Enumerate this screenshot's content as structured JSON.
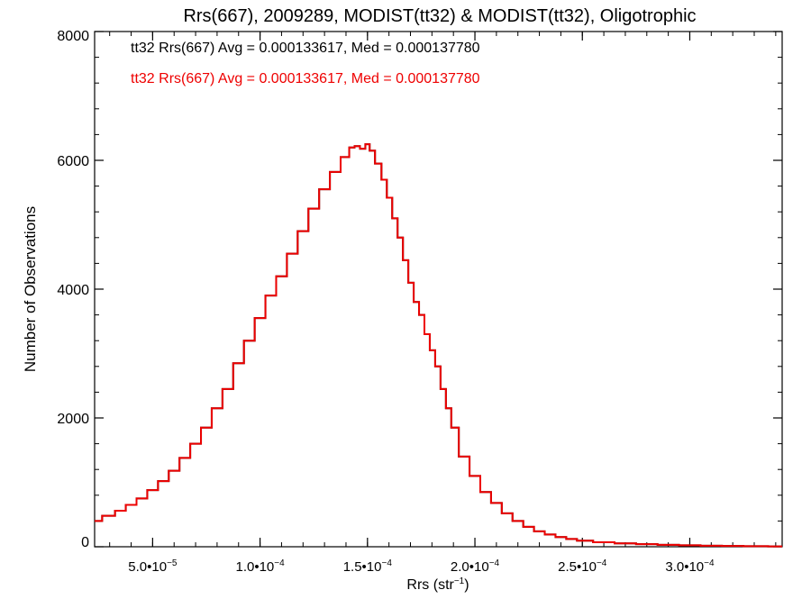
{
  "chart_data": {
    "type": "histogram",
    "title": "Rrs(667), 2009289, MODIST(tt32) & MODIST(tt32), Oligotrophic",
    "xlabel": "Rrs (str",
    "xlabel_superscript": "−1",
    "xlabel_suffix": ")",
    "ylabel": "Number of Observations",
    "xlim": [
      2.3e-05,
      0.000343
    ],
    "ylim": [
      0,
      8000
    ],
    "x_ticks": [
      {
        "value": 5e-05,
        "label": "5.0•10",
        "exp": "−5"
      },
      {
        "value": 0.0001,
        "label": "1.0•10",
        "exp": "−4"
      },
      {
        "value": 0.00015,
        "label": "1.5•10",
        "exp": "−4"
      },
      {
        "value": 0.0002,
        "label": "2.0•10",
        "exp": "−4"
      },
      {
        "value": 0.00025,
        "label": "2.5•10",
        "exp": "−4"
      },
      {
        "value": 0.0003,
        "label": "3.0•10",
        "exp": "−4"
      }
    ],
    "y_ticks": [
      {
        "value": 0,
        "label": "0"
      },
      {
        "value": 2000,
        "label": "2000"
      },
      {
        "value": 4000,
        "label": "4000"
      },
      {
        "value": 6000,
        "label": "6000"
      },
      {
        "value": 8000,
        "label": "8000"
      }
    ],
    "annotations": [
      {
        "text": "tt32 Rrs(667) Avg = 0.000133617, Med = 0.000137780",
        "color": "#000000"
      },
      {
        "text": "tt32 Rrs(667) Avg = 0.000133617, Med = 0.000137780",
        "color": "#ee0000"
      }
    ],
    "series": [
      {
        "color": "#000000",
        "step": "mid"
      },
      {
        "color": "#ee0000",
        "step": "mid"
      }
    ],
    "x": [
      2.3e-05,
      3e-05,
      3.5e-05,
      4e-05,
      4.5e-05,
      5e-05,
      5.5e-05,
      6e-05,
      6.5e-05,
      7e-05,
      7.5e-05,
      8e-05,
      8.5e-05,
      9e-05,
      9.5e-05,
      0.0001,
      0.000105,
      0.00011,
      0.000115,
      0.00012,
      0.000125,
      0.00013,
      0.000135,
      0.00014,
      0.000143,
      0.000145,
      0.000148,
      0.00015,
      0.000152,
      0.000155,
      0.000158,
      0.00016,
      0.000163,
      0.000165,
      0.000168,
      0.00017,
      0.000173,
      0.000175,
      0.000178,
      0.00018,
      0.000183,
      0.000185,
      0.000188,
      0.00019,
      0.000195,
      0.0002,
      0.000205,
      0.00021,
      0.000215,
      0.00022,
      0.000225,
      0.00023,
      0.000235,
      0.00024,
      0.000245,
      0.00025,
      0.00026,
      0.00027,
      0.00028,
      0.00029,
      0.0003,
      0.00031,
      0.00032,
      0.00033,
      0.000343
    ],
    "values": [
      400,
      480,
      560,
      650,
      750,
      880,
      1020,
      1180,
      1380,
      1600,
      1850,
      2150,
      2450,
      2850,
      3200,
      3550,
      3900,
      4200,
      4550,
      4900,
      5250,
      5550,
      5820,
      6050,
      6200,
      6220,
      6180,
      6250,
      6150,
      5950,
      5700,
      5420,
      5100,
      4800,
      4450,
      4100,
      3800,
      3600,
      3300,
      3050,
      2800,
      2450,
      2150,
      1850,
      1400,
      1100,
      850,
      680,
      520,
      400,
      310,
      240,
      190,
      150,
      120,
      95,
      70,
      52,
      40,
      30,
      22,
      16,
      12,
      8,
      6
    ]
  }
}
